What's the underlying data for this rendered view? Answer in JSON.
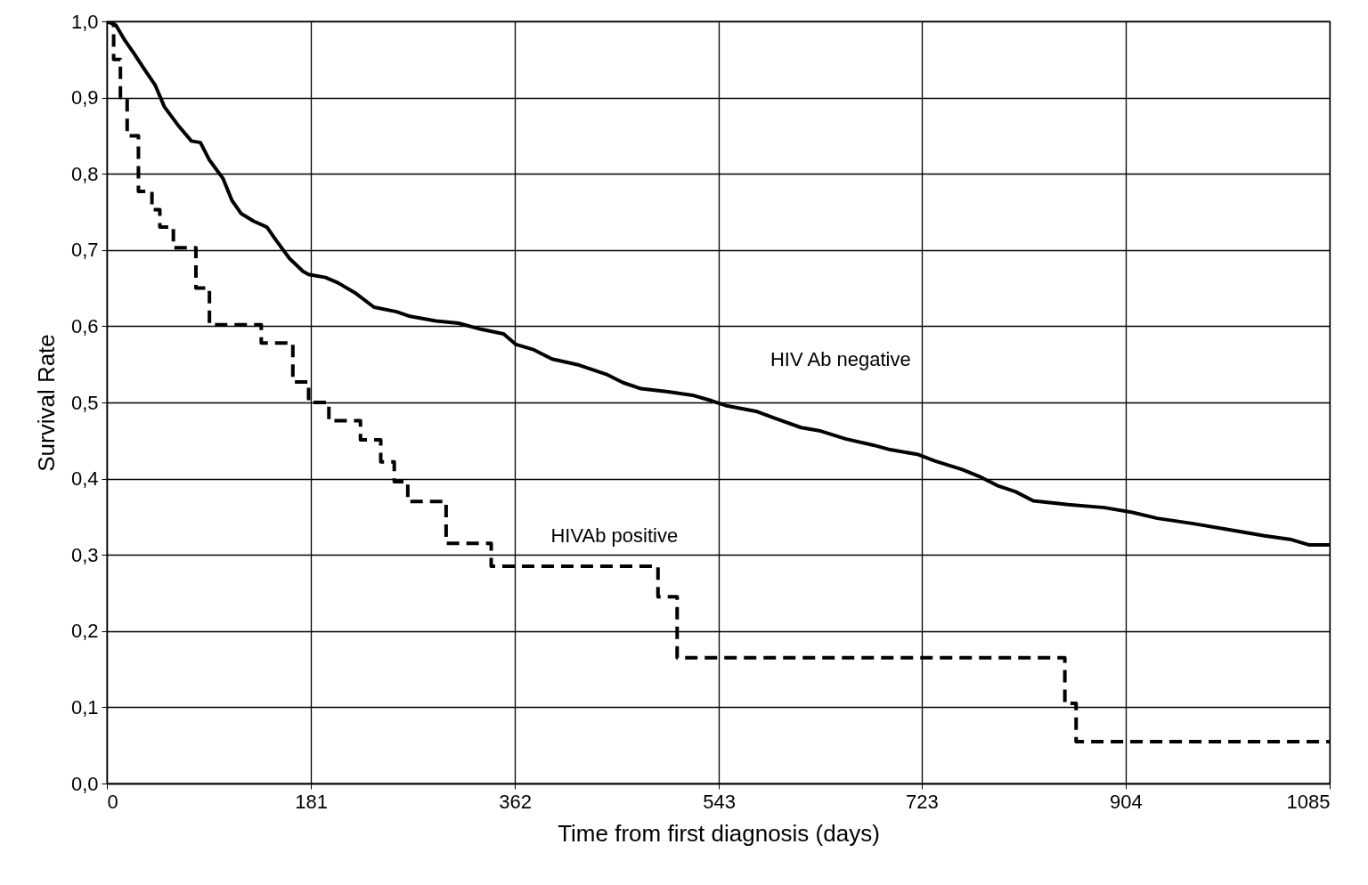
{
  "chart_data": {
    "type": "line",
    "xlabel": "Time from first diagnosis (days)",
    "ylabel": "Survival Rate",
    "xlim": [
      0,
      1085
    ],
    "xticks": [
      0,
      181,
      362,
      543,
      723,
      904,
      1085
    ],
    "ylim": [
      0,
      1
    ],
    "yticks": [
      {
        "value": 0,
        "label": "0,0"
      },
      {
        "value": 0.1,
        "label": "0,1"
      },
      {
        "value": 0.2,
        "label": "0,2"
      },
      {
        "value": 0.3,
        "label": "0,3"
      },
      {
        "value": 0.4,
        "label": "0,4"
      },
      {
        "value": 0.5,
        "label": "0,5"
      },
      {
        "value": 0.6,
        "label": "0,6"
      },
      {
        "value": 0.7,
        "label": "0,7"
      },
      {
        "value": 0.8,
        "label": "0,8"
      },
      {
        "value": 0.9,
        "label": "0,9"
      },
      {
        "value": 1,
        "label": "1,0"
      }
    ],
    "grid": true,
    "series": [
      {
        "name": "HIV Ab negative",
        "color": "#000000",
        "line_style": "solid",
        "x": [
          0,
          8,
          16,
          24,
          32,
          43,
          51,
          63,
          75,
          83,
          91,
          103,
          111,
          119,
          130,
          142,
          150,
          162,
          174,
          179,
          194,
          205,
          221,
          237,
          257,
          269,
          292,
          312,
          332,
          352,
          363,
          379,
          395,
          419,
          443,
          458,
          474,
          498,
          521,
          537,
          549,
          577,
          593,
          616,
          632,
          656,
          680,
          695,
          719,
          735,
          759,
          774,
          790,
          806,
          822,
          853,
          885,
          909,
          932,
          964,
          996,
          1027,
          1051,
          1067,
          1085
        ],
        "values": [
          1.0,
          0.995,
          0.975,
          0.958,
          0.94,
          0.916,
          0.888,
          0.864,
          0.843,
          0.841,
          0.818,
          0.794,
          0.765,
          0.748,
          0.738,
          0.73,
          0.713,
          0.689,
          0.672,
          0.668,
          0.664,
          0.657,
          0.643,
          0.625,
          0.619,
          0.613,
          0.607,
          0.604,
          0.596,
          0.59,
          0.576,
          0.569,
          0.557,
          0.549,
          0.537,
          0.526,
          0.518,
          0.514,
          0.509,
          0.502,
          0.496,
          0.488,
          0.479,
          0.467,
          0.463,
          0.452,
          0.444,
          0.438,
          0.432,
          0.423,
          0.412,
          0.403,
          0.391,
          0.383,
          0.371,
          0.366,
          0.362,
          0.356,
          0.348,
          0.341,
          0.333,
          0.325,
          0.32,
          0.313,
          0.313
        ]
      },
      {
        "name": "HIVAb positive",
        "color": "#000000",
        "line_style": "dashed",
        "type": "step",
        "x": [
          0,
          6,
          12,
          18,
          28,
          40,
          47,
          59,
          79,
          91,
          137,
          165,
          179,
          197,
          225,
          243,
          255,
          267,
          301,
          341,
          489,
          506,
          850,
          860,
          1085
        ],
        "values": [
          1.0,
          0.95,
          0.9,
          0.85,
          0.777,
          0.753,
          0.73,
          0.703,
          0.65,
          0.602,
          0.578,
          0.527,
          0.5,
          0.476,
          0.451,
          0.422,
          0.396,
          0.37,
          0.315,
          0.285,
          0.245,
          0.165,
          0.105,
          0.055,
          0.055
        ]
      }
    ]
  }
}
